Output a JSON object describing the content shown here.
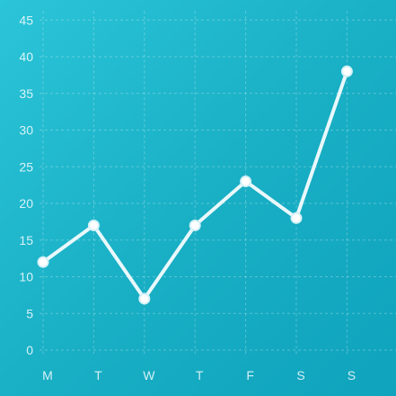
{
  "chart_data": {
    "type": "line",
    "title": "",
    "xlabel": "",
    "ylabel": "",
    "categories": [
      "M",
      "T",
      "W",
      "T",
      "F",
      "S",
      "S"
    ],
    "series": [
      {
        "values": [
          12,
          17,
          7,
          17,
          23,
          18,
          38
        ]
      }
    ],
    "ylim": [
      0,
      45
    ],
    "yticks": [
      "0",
      "5",
      "10",
      "15",
      "20",
      "25",
      "30",
      "35",
      "40",
      "45"
    ],
    "grid": true,
    "legend": "none",
    "colors": {
      "line": "#e9f8fb",
      "point": "#ffffff",
      "background_start": "#2bc4d8",
      "background_end": "#0fa3bd"
    }
  }
}
